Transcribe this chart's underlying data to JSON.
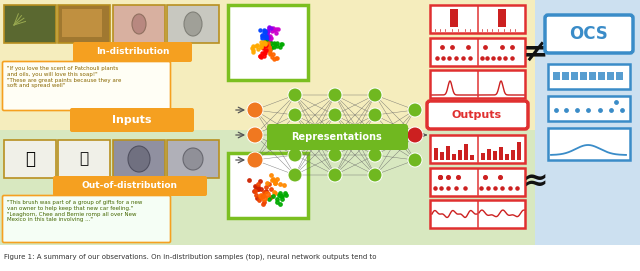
{
  "bg_yellow": "#f5edbd",
  "bg_green": "#d8e8c0",
  "bg_blue": "#cce0f0",
  "orange_label": "#f5a020",
  "green_box": "#7bbf20",
  "red_panel": "#e03030",
  "blue_ocs": "#3a8cc8",
  "node_green": "#70b820",
  "node_orange": "#f07820",
  "node_red": "#cc2020",
  "line_color": "#555555",
  "caption": "Figure 1: A summary of our observations. On in-distribution samples (top), neural network outputs tend to",
  "title_in": "In-distribution",
  "title_out": "Out-of-distribution",
  "label_inputs": "Inputs",
  "label_repr": "Representations",
  "label_outputs": "Outputs",
  "label_ocs": "OCS",
  "fig_w": 6.4,
  "fig_h": 2.71,
  "dpi": 100
}
